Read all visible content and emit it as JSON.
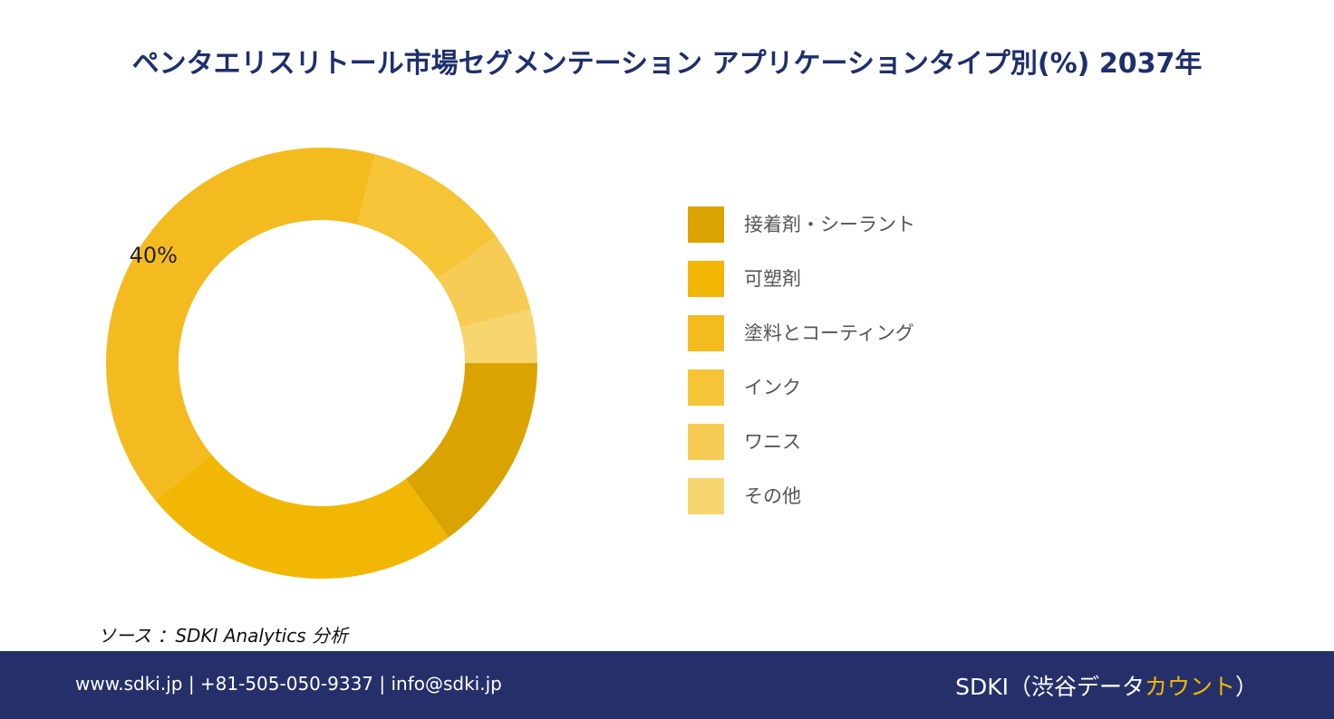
{
  "title": "ペンタエリスリトール市場セグメンテーション アプリケーションタイプ別(%) 2037年",
  "chart_data": {
    "type": "pie",
    "variant": "donut",
    "slices": [
      {
        "label": "接着剤・シーラント",
        "value": 15,
        "color": "#dba300"
      },
      {
        "label": "可塑剤",
        "value": 24,
        "color": "#f2b705"
      },
      {
        "label": "塗料とコーティング",
        "value": 40,
        "color": "#f4bb20",
        "data_label": "40%"
      },
      {
        "label": "インク",
        "value": 11,
        "color": "#f5c537"
      },
      {
        "label": "ワニス",
        "value": 6,
        "color": "#f6cc55"
      },
      {
        "label": "その他",
        "value": 4,
        "color": "#f7d56f"
      }
    ],
    "legend_position": "right"
  },
  "source": "ソース ：SDKI Analytics 分析",
  "footer": {
    "contact": "www.sdki.jp | +81-505-050-9337 | info@sdki.jp",
    "brand_prefix": "SDKI（渋谷データ",
    "brand_accent": "カウント",
    "brand_suffix": "）",
    "background_color": "#25306b"
  }
}
